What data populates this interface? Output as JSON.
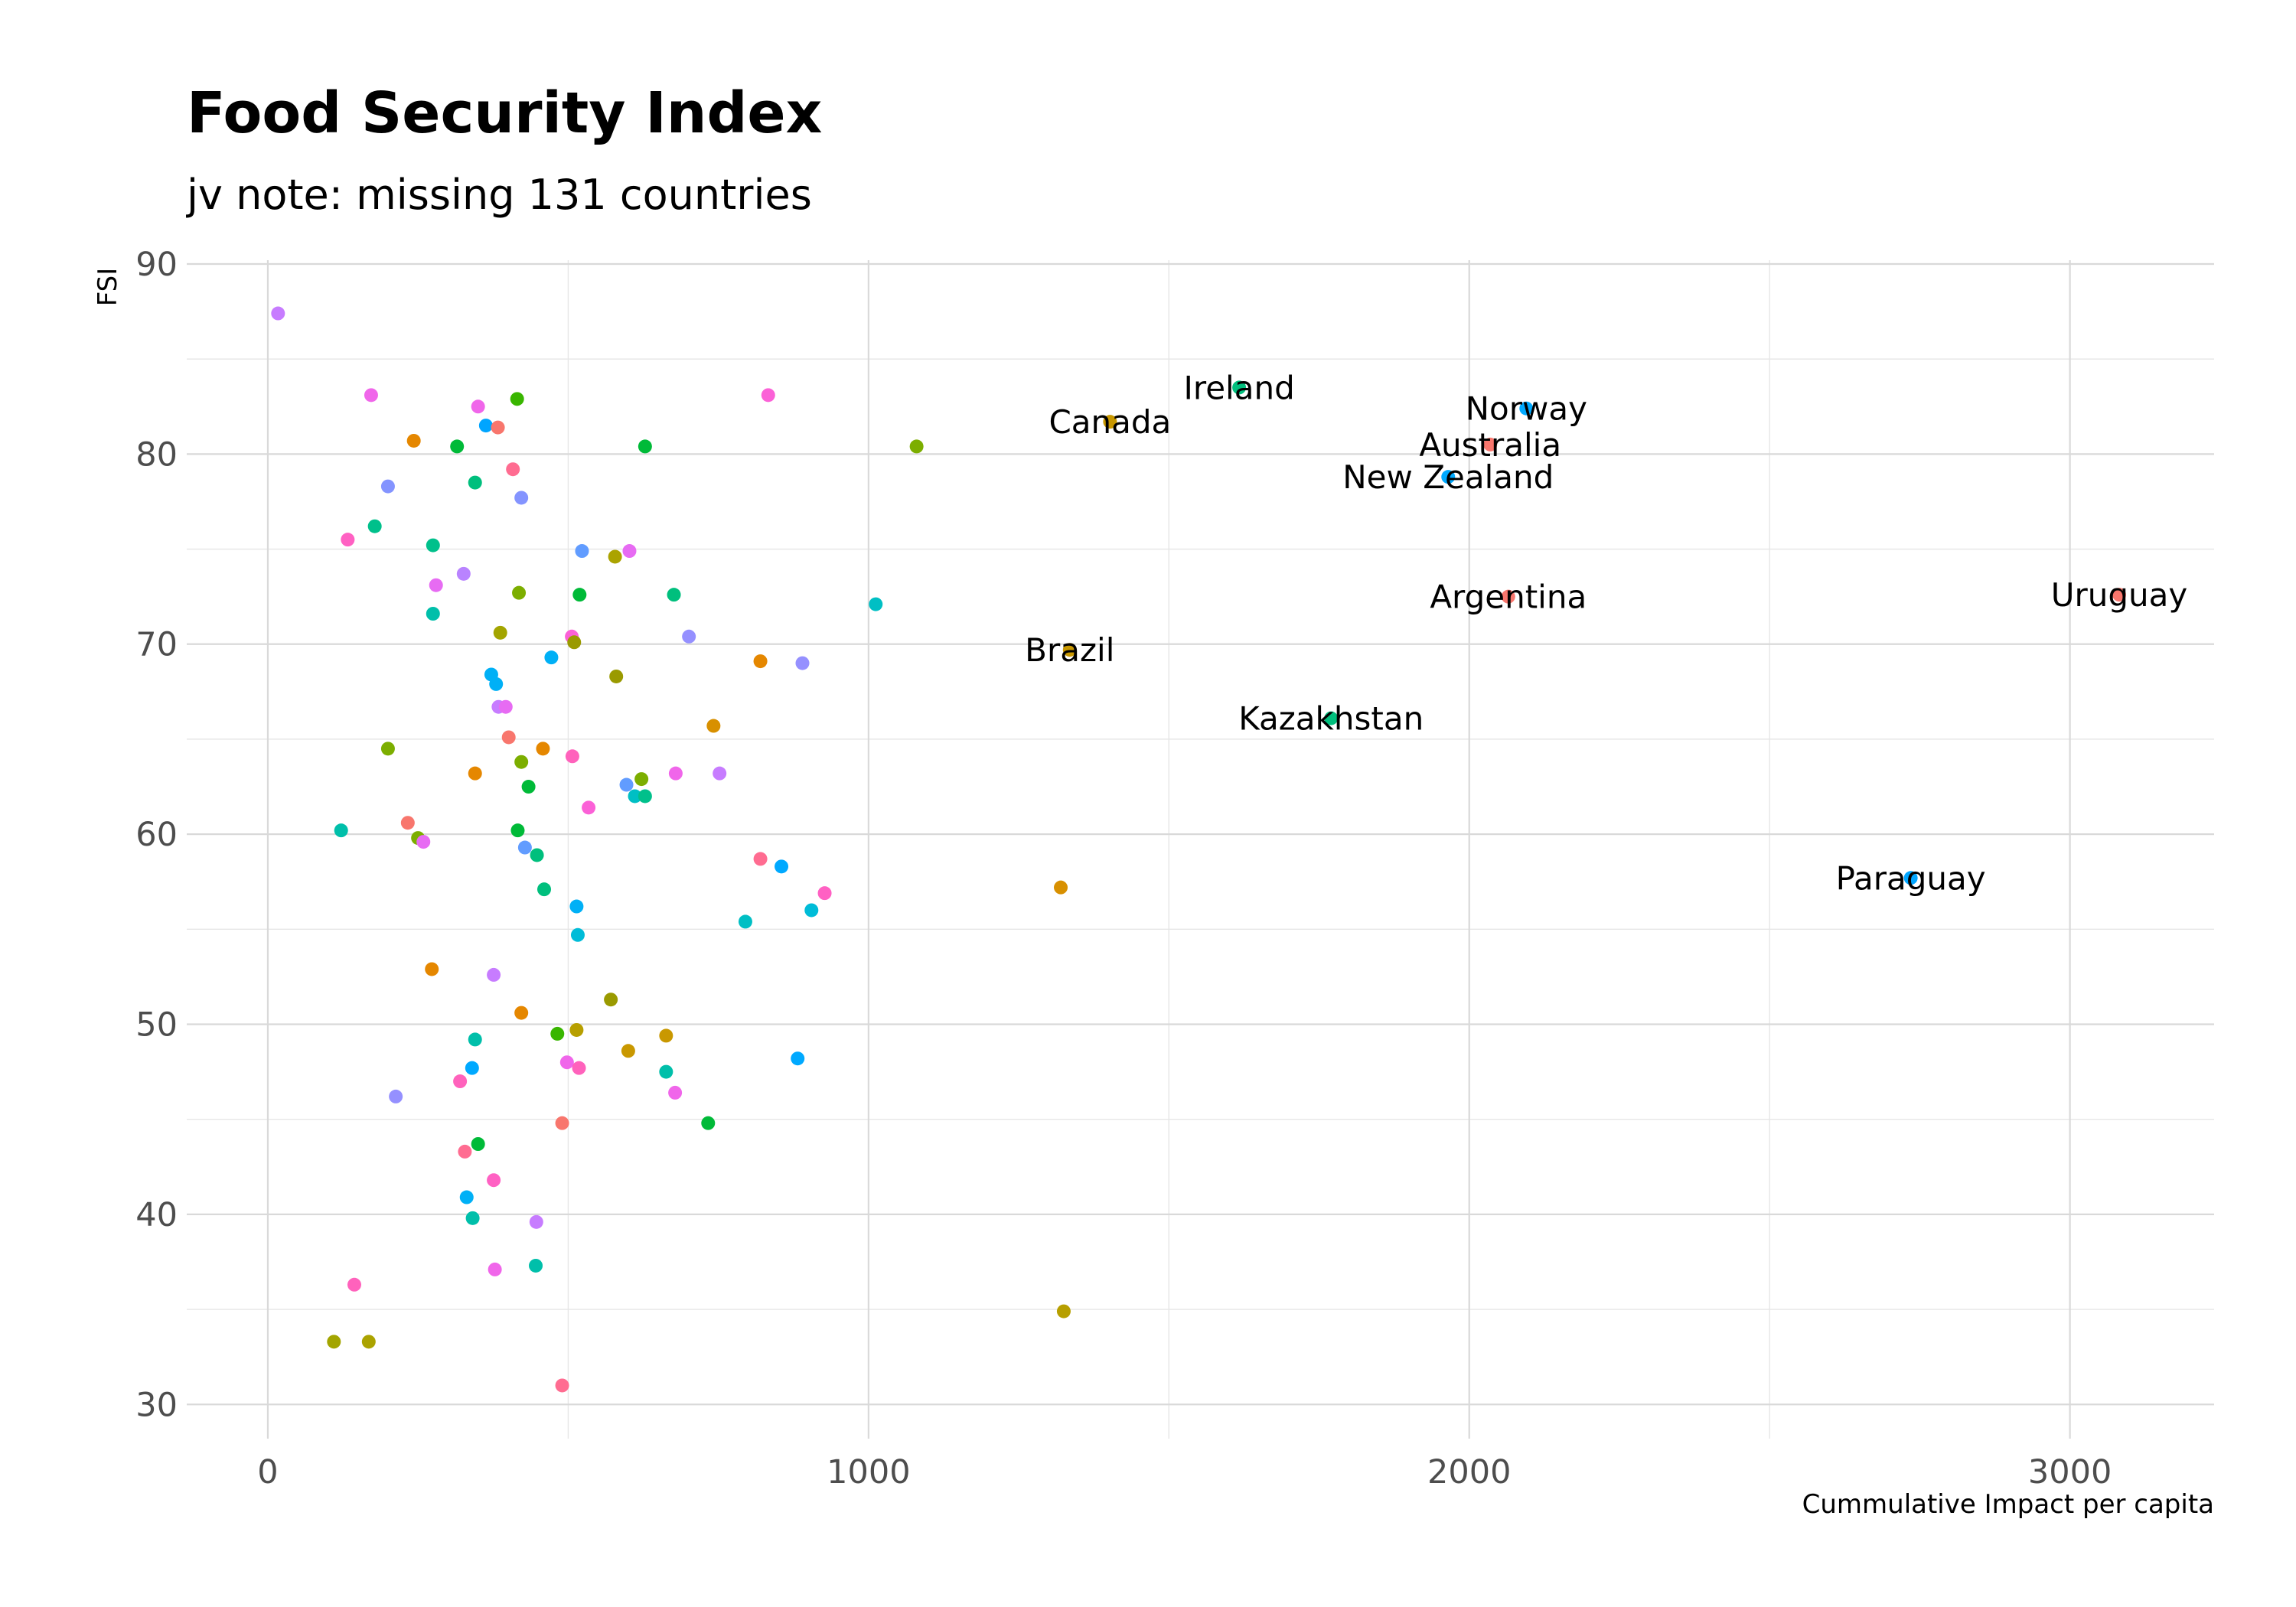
{
  "chart_data": {
    "type": "scatter",
    "title": "Food Security Index",
    "subtitle": "jv note: missing 131 countries",
    "xlabel": "Cummulative Impact per capita",
    "ylabel": "FSI",
    "xlim": [
      -135,
      3240
    ],
    "ylim": [
      28.2,
      90.2
    ],
    "x_ticks": [
      0,
      1000,
      2000,
      3000
    ],
    "y_ticks": [
      30,
      40,
      50,
      60,
      70,
      80,
      90
    ],
    "grid": true,
    "legend": "none",
    "points": [
      {
        "x": 17,
        "y": 87.4,
        "color": "#C77CFF"
      },
      {
        "x": 172,
        "y": 83.1,
        "color": "#F066EA"
      },
      {
        "x": 350,
        "y": 82.5,
        "color": "#F066EA"
      },
      {
        "x": 415,
        "y": 82.9,
        "color": "#39B600"
      },
      {
        "x": 833,
        "y": 83.1,
        "color": "#FB61D7"
      },
      {
        "x": 243,
        "y": 80.7,
        "color": "#E58700"
      },
      {
        "x": 315,
        "y": 80.4,
        "color": "#00BA38"
      },
      {
        "x": 363,
        "y": 81.5,
        "color": "#00A5FF"
      },
      {
        "x": 383,
        "y": 81.4,
        "color": "#F8766D"
      },
      {
        "x": 628,
        "y": 80.4,
        "color": "#00BA38"
      },
      {
        "x": 1080,
        "y": 80.4,
        "color": "#7CAE00"
      },
      {
        "x": 200,
        "y": 78.3,
        "color": "#8494FF"
      },
      {
        "x": 345,
        "y": 78.5,
        "color": "#00BF7D"
      },
      {
        "x": 408,
        "y": 79.2,
        "color": "#FF6C91"
      },
      {
        "x": 422,
        "y": 77.7,
        "color": "#8494FF"
      },
      {
        "x": 133,
        "y": 75.5,
        "color": "#FF61C3"
      },
      {
        "x": 178,
        "y": 76.2,
        "color": "#00C08B"
      },
      {
        "x": 275,
        "y": 75.2,
        "color": "#00C08B"
      },
      {
        "x": 523,
        "y": 74.9,
        "color": "#619CFF"
      },
      {
        "x": 578,
        "y": 74.6,
        "color": "#ABA300"
      },
      {
        "x": 602,
        "y": 74.9,
        "color": "#E76BF3"
      },
      {
        "x": 280,
        "y": 73.1,
        "color": "#E76BF3"
      },
      {
        "x": 326,
        "y": 73.7,
        "color": "#B983FF"
      },
      {
        "x": 418,
        "y": 72.7,
        "color": "#7CAE00"
      },
      {
        "x": 519,
        "y": 72.6,
        "color": "#00BA38"
      },
      {
        "x": 676,
        "y": 72.6,
        "color": "#00BF7D"
      },
      {
        "x": 1012,
        "y": 72.1,
        "color": "#00BFC4"
      },
      {
        "x": 275,
        "y": 71.6,
        "color": "#00BFAA"
      },
      {
        "x": 387,
        "y": 70.6,
        "color": "#A3A500"
      },
      {
        "x": 506,
        "y": 70.4,
        "color": "#FB61D7"
      },
      {
        "x": 510,
        "y": 70.1,
        "color": "#9A9A00"
      },
      {
        "x": 701,
        "y": 70.4,
        "color": "#9590FF"
      },
      {
        "x": 472,
        "y": 69.3,
        "color": "#00B0F6"
      },
      {
        "x": 820,
        "y": 69.1,
        "color": "#E58700"
      },
      {
        "x": 890,
        "y": 69.0,
        "color": "#9590FF"
      },
      {
        "x": 1335,
        "y": 69.7,
        "color": "#C99800",
        "label": "Brazil"
      },
      {
        "x": 372,
        "y": 68.4,
        "color": "#00B0F6"
      },
      {
        "x": 380,
        "y": 67.9,
        "color": "#00B0F6"
      },
      {
        "x": 580,
        "y": 68.3,
        "color": "#9A9A00"
      },
      {
        "x": 384,
        "y": 66.7,
        "color": "#C77CFF"
      },
      {
        "x": 396,
        "y": 66.7,
        "color": "#E76BF3"
      },
      {
        "x": 401,
        "y": 65.1,
        "color": "#F8766D"
      },
      {
        "x": 742,
        "y": 65.7,
        "color": "#D89000"
      },
      {
        "x": 1770,
        "y": 66.1,
        "color": "#00BF7D",
        "label": "Kazakhstan"
      },
      {
        "x": 200,
        "y": 64.5,
        "color": "#7CAE00"
      },
      {
        "x": 345,
        "y": 63.2,
        "color": "#E58700"
      },
      {
        "x": 422,
        "y": 63.8,
        "color": "#7CAE00"
      },
      {
        "x": 458,
        "y": 64.5,
        "color": "#E58700"
      },
      {
        "x": 507,
        "y": 64.1,
        "color": "#FF62BC"
      },
      {
        "x": 622,
        "y": 62.9,
        "color": "#7CAE00"
      },
      {
        "x": 679,
        "y": 63.2,
        "color": "#F066EA"
      },
      {
        "x": 752,
        "y": 63.2,
        "color": "#C77CFF"
      },
      {
        "x": 434,
        "y": 62.5,
        "color": "#00BA38"
      },
      {
        "x": 597,
        "y": 62.6,
        "color": "#619CFF"
      },
      {
        "x": 611,
        "y": 62.0,
        "color": "#00BFC4"
      },
      {
        "x": 628,
        "y": 62.0,
        "color": "#00C08B"
      },
      {
        "x": 534,
        "y": 61.4,
        "color": "#FB61D7"
      },
      {
        "x": 122,
        "y": 60.2,
        "color": "#00BFAA"
      },
      {
        "x": 233,
        "y": 60.6,
        "color": "#F8766D"
      },
      {
        "x": 250,
        "y": 59.8,
        "color": "#7CAE00"
      },
      {
        "x": 259,
        "y": 59.6,
        "color": "#E76BF3"
      },
      {
        "x": 416,
        "y": 60.2,
        "color": "#00BA38"
      },
      {
        "x": 428,
        "y": 59.3,
        "color": "#619CFF"
      },
      {
        "x": 448,
        "y": 58.9,
        "color": "#00BF7D"
      },
      {
        "x": 820,
        "y": 58.7,
        "color": "#FF6C91"
      },
      {
        "x": 855,
        "y": 58.3,
        "color": "#00A9FF"
      },
      {
        "x": 460,
        "y": 57.1,
        "color": "#00BF7D"
      },
      {
        "x": 1320,
        "y": 57.2,
        "color": "#D89000"
      },
      {
        "x": 927,
        "y": 56.9,
        "color": "#FF61C3"
      },
      {
        "x": 2735,
        "y": 57.7,
        "color": "#00A5FF",
        "label": "Paraguay"
      },
      {
        "x": 514,
        "y": 56.2,
        "color": "#00B0F6"
      },
      {
        "x": 905,
        "y": 56.0,
        "color": "#00BCD8"
      },
      {
        "x": 516,
        "y": 54.7,
        "color": "#00BCD8"
      },
      {
        "x": 795,
        "y": 55.4,
        "color": "#00BFC4"
      },
      {
        "x": 273,
        "y": 52.9,
        "color": "#E58700"
      },
      {
        "x": 376,
        "y": 52.6,
        "color": "#C77CFF"
      },
      {
        "x": 571,
        "y": 51.3,
        "color": "#9A9A00"
      },
      {
        "x": 422,
        "y": 50.6,
        "color": "#E58700"
      },
      {
        "x": 482,
        "y": 49.5,
        "color": "#39B600"
      },
      {
        "x": 514,
        "y": 49.7,
        "color": "#B79F00"
      },
      {
        "x": 663,
        "y": 49.4,
        "color": "#C99800"
      },
      {
        "x": 345,
        "y": 49.2,
        "color": "#00BFAA"
      },
      {
        "x": 340,
        "y": 47.7,
        "color": "#00A9FF"
      },
      {
        "x": 498,
        "y": 48.0,
        "color": "#F066EA"
      },
      {
        "x": 518,
        "y": 47.7,
        "color": "#FF62BC"
      },
      {
        "x": 600,
        "y": 48.6,
        "color": "#C99800"
      },
      {
        "x": 663,
        "y": 47.5,
        "color": "#00BFAA"
      },
      {
        "x": 882,
        "y": 48.2,
        "color": "#00A9FF"
      },
      {
        "x": 213,
        "y": 46.2,
        "color": "#9590FF"
      },
      {
        "x": 320,
        "y": 47.0,
        "color": "#FF62BC"
      },
      {
        "x": 678,
        "y": 46.4,
        "color": "#F066EA"
      },
      {
        "x": 490,
        "y": 44.8,
        "color": "#F8766D"
      },
      {
        "x": 733,
        "y": 44.8,
        "color": "#00BA38"
      },
      {
        "x": 350,
        "y": 43.7,
        "color": "#00BA38"
      },
      {
        "x": 328,
        "y": 43.3,
        "color": "#FF6C91"
      },
      {
        "x": 376,
        "y": 41.8,
        "color": "#FF61C3"
      },
      {
        "x": 331,
        "y": 40.9,
        "color": "#00B0F6"
      },
      {
        "x": 341,
        "y": 39.8,
        "color": "#00BFAA"
      },
      {
        "x": 447,
        "y": 39.6,
        "color": "#C77CFF"
      },
      {
        "x": 378,
        "y": 37.1,
        "color": "#F066EA"
      },
      {
        "x": 446,
        "y": 37.3,
        "color": "#00BFAA"
      },
      {
        "x": 144,
        "y": 36.3,
        "color": "#FF62BC"
      },
      {
        "x": 110,
        "y": 33.3,
        "color": "#A3A500"
      },
      {
        "x": 168,
        "y": 33.3,
        "color": "#ABA300"
      },
      {
        "x": 1325,
        "y": 34.9,
        "color": "#B79F00"
      },
      {
        "x": 490,
        "y": 31.0,
        "color": "#FF6C91"
      },
      {
        "x": 1402,
        "y": 81.7,
        "color": "#C99800",
        "label": "Canada"
      },
      {
        "x": 1617,
        "y": 83.5,
        "color": "#00BF7D",
        "label": "Ireland"
      },
      {
        "x": 2095,
        "y": 82.4,
        "color": "#00A9FF",
        "label": "Norway"
      },
      {
        "x": 2035,
        "y": 80.5,
        "color": "#F8766D",
        "label": "Australia"
      },
      {
        "x": 1965,
        "y": 78.8,
        "color": "#00A9FF",
        "label": "New Zealand"
      },
      {
        "x": 2065,
        "y": 72.5,
        "color": "#F8766D",
        "label": "Argentina"
      },
      {
        "x": 3082,
        "y": 72.6,
        "color": "#F8766D",
        "label": "Uruguay"
      }
    ]
  }
}
